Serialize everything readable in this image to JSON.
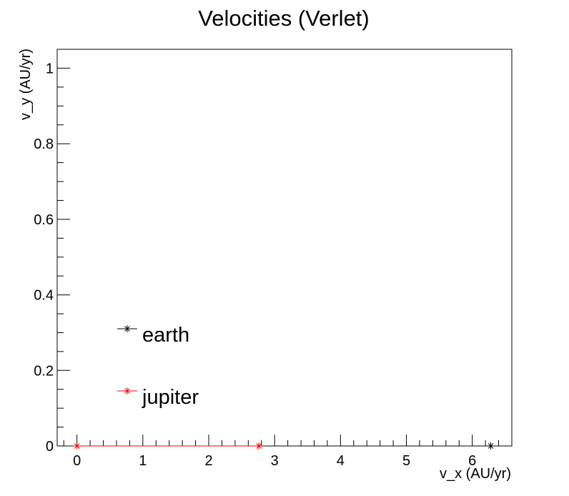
{
  "chart_data": {
    "type": "line",
    "title": "Velocities (Verlet)",
    "xlabel": "v_x (AU/yr)",
    "ylabel": "v_y (AU/yr)",
    "xlim": [
      -0.3,
      6.6
    ],
    "ylim": [
      0,
      1.05
    ],
    "x_ticks": [
      0,
      1,
      2,
      3,
      4,
      5,
      6
    ],
    "x_tick_labels": [
      "0",
      "1",
      "2",
      "3",
      "4",
      "5",
      "6"
    ],
    "y_ticks": [
      0,
      0.2,
      0.4,
      0.6,
      0.8,
      1
    ],
    "y_tick_labels": [
      "0",
      "0.2",
      "0.4",
      "0.6",
      "0.8",
      "1"
    ],
    "grid": false,
    "legend_position": "bottom-left",
    "series": [
      {
        "name": "earth",
        "color": "#000000",
        "marker": "asterisk",
        "x": [
          6.28
        ],
        "y": [
          0
        ]
      },
      {
        "name": "jupiter",
        "color": "#ff0000",
        "marker": "asterisk",
        "x": [
          0,
          2.76
        ],
        "y": [
          0,
          0
        ]
      }
    ]
  }
}
